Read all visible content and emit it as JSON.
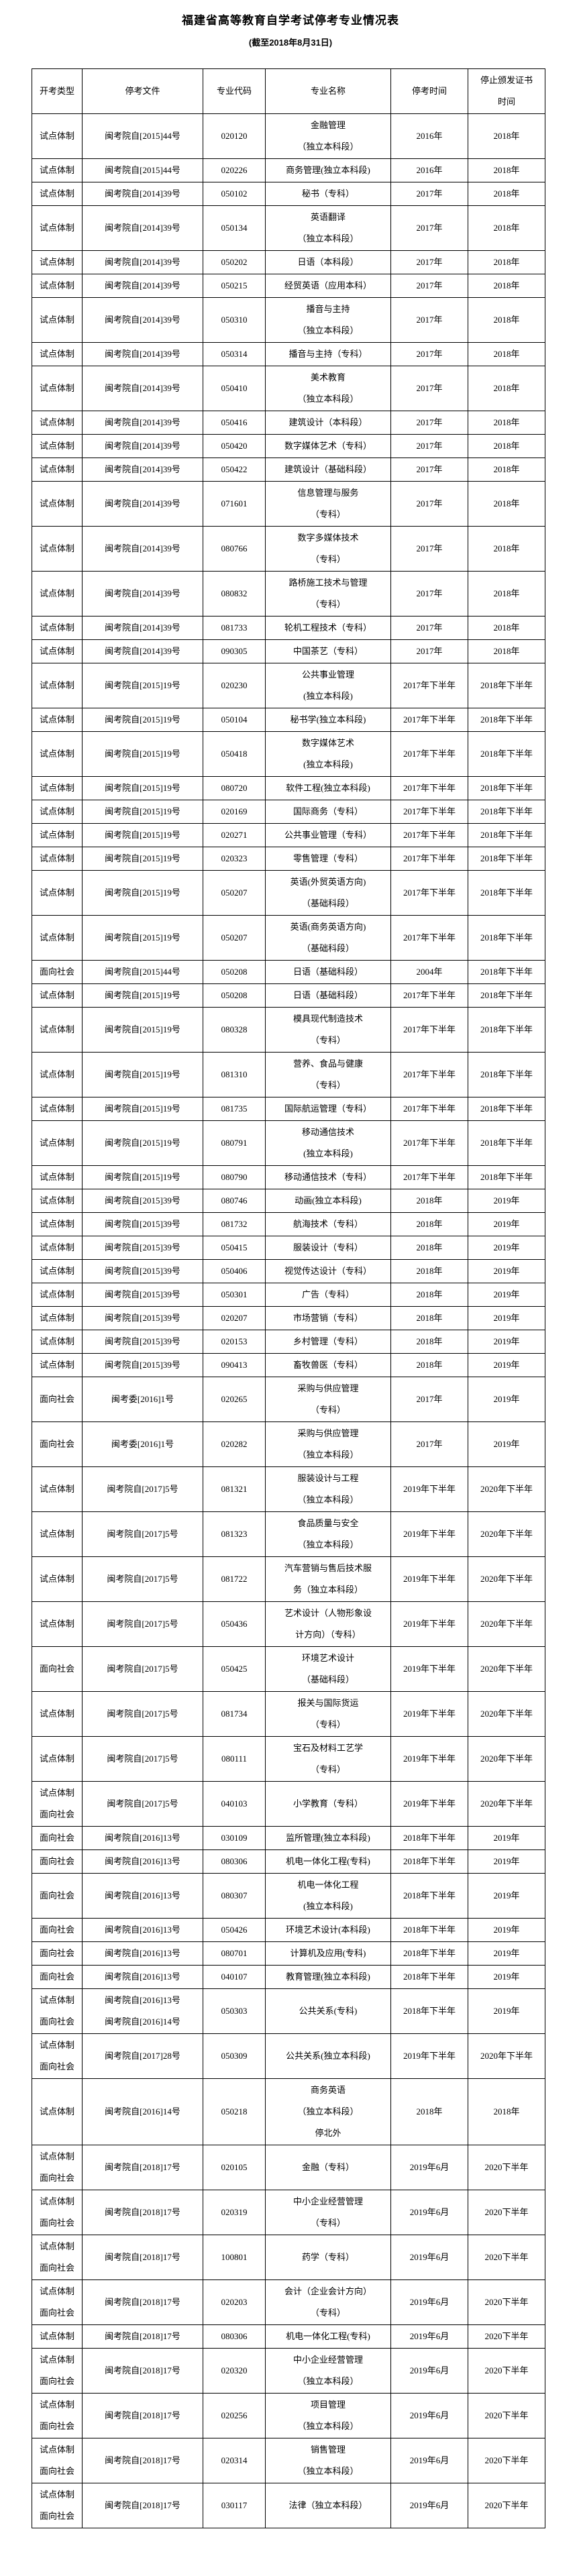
{
  "page": {
    "title": "福建省高等教育自学考试停考专业情况表",
    "subtitle": "(截至2018年8月31日)"
  },
  "table": {
    "headers": [
      "开考类型",
      "停考文件",
      "专业代码",
      "专业名称",
      "停考时间",
      "停止颁发证书\n时间"
    ],
    "rows": [
      [
        "试点体制",
        "闽考院自[2015]44号",
        "020120",
        "金融管理\n（独立本科段）",
        "2016年",
        "2018年"
      ],
      [
        "试点体制",
        "闽考院自[2015]44号",
        "020226",
        "商务管理(独立本科段)",
        "2016年",
        "2018年"
      ],
      [
        "试点体制",
        "闽考院自[2014]39号",
        "050102",
        "秘书（专科）",
        "2017年",
        "2018年"
      ],
      [
        "试点体制",
        "闽考院自[2014]39号",
        "050134",
        "英语翻译\n（独立本科段）",
        "2017年",
        "2018年"
      ],
      [
        "试点体制",
        "闽考院自[2014]39号",
        "050202",
        "日语（本科段）",
        "2017年",
        "2018年"
      ],
      [
        "试点体制",
        "闽考院自[2014]39号",
        "050215",
        "经贸英语（应用本科）",
        "2017年",
        "2018年"
      ],
      [
        "试点体制",
        "闽考院自[2014]39号",
        "050310",
        "播音与主持\n（独立本科段）",
        "2017年",
        "2018年"
      ],
      [
        "试点体制",
        "闽考院自[2014]39号",
        "050314",
        "播音与主持（专科）",
        "2017年",
        "2018年"
      ],
      [
        "试点体制",
        "闽考院自[2014]39号",
        "050410",
        "美术教育\n（独立本科段）",
        "2017年",
        "2018年"
      ],
      [
        "试点体制",
        "闽考院自[2014]39号",
        "050416",
        "建筑设计（本科段）",
        "2017年",
        "2018年"
      ],
      [
        "试点体制",
        "闽考院自[2014]39号",
        "050420",
        "数字媒体艺术（专科）",
        "2017年",
        "2018年"
      ],
      [
        "试点体制",
        "闽考院自[2014]39号",
        "050422",
        "建筑设计（基础科段）",
        "2017年",
        "2018年"
      ],
      [
        "试点体制",
        "闽考院自[2014]39号",
        "071601",
        "信息管理与服务\n（专科）",
        "2017年",
        "2018年"
      ],
      [
        "试点体制",
        "闽考院自[2014]39号",
        "080766",
        "数字多媒体技术\n（专科）",
        "2017年",
        "2018年"
      ],
      [
        "试点体制",
        "闽考院自[2014]39号",
        "080832",
        "路桥施工技术与管理\n（专科）",
        "2017年",
        "2018年"
      ],
      [
        "试点体制",
        "闽考院自[2014]39号",
        "081733",
        "轮机工程技术（专科）",
        "2017年",
        "2018年"
      ],
      [
        "试点体制",
        "闽考院自[2014]39号",
        "090305",
        "中国茶艺（专科）",
        "2017年",
        "2018年"
      ],
      [
        "试点体制",
        "闽考院自[2015]19号",
        "020230",
        "公共事业管理\n(独立本科段)",
        "2017年下半年",
        "2018年下半年"
      ],
      [
        "试点体制",
        "闽考院自[2015]19号",
        "050104",
        "秘书学(独立本科段)",
        "2017年下半年",
        "2018年下半年"
      ],
      [
        "试点体制",
        "闽考院自[2015]19号",
        "050418",
        "数字媒体艺术\n(独立本科段)",
        "2017年下半年",
        "2018年下半年"
      ],
      [
        "试点体制",
        "闽考院自[2015]19号",
        "080720",
        "软件工程(独立本科段)",
        "2017年下半年",
        "2018年下半年"
      ],
      [
        "试点体制",
        "闽考院自[2015]19号",
        "020169",
        "国际商务（专科）",
        "2017年下半年",
        "2018年下半年"
      ],
      [
        "试点体制",
        "闽考院自[2015]19号",
        "020271",
        "公共事业管理（专科）",
        "2017年下半年",
        "2018年下半年"
      ],
      [
        "试点体制",
        "闽考院自[2015]19号",
        "020323",
        "零售管理（专科）",
        "2017年下半年",
        "2018年下半年"
      ],
      [
        "试点体制",
        "闽考院自[2015]19号",
        "050207",
        "英语(外贸英语方向)\n（基础科段）",
        "2017年下半年",
        "2018年下半年"
      ],
      [
        "试点体制",
        "闽考院自[2015]19号",
        "050207",
        "英语(商务英语方向)\n（基础科段）",
        "2017年下半年",
        "2018年下半年"
      ],
      [
        "面向社会",
        "闽考院自[2015]44号",
        "050208",
        "日语（基础科段）",
        "2004年",
        "2018年下半年"
      ],
      [
        "试点体制",
        "闽考院自[2015]19号",
        "050208",
        "日语（基础科段）",
        "2017年下半年",
        "2018年下半年"
      ],
      [
        "试点体制",
        "闽考院自[2015]19号",
        "080328",
        "模具现代制造技术\n（专科）",
        "2017年下半年",
        "2018年下半年"
      ],
      [
        "试点体制",
        "闽考院自[2015]19号",
        "081310",
        "营养、食品与健康\n（专科）",
        "2017年下半年",
        "2018年下半年"
      ],
      [
        "试点体制",
        "闽考院自[2015]19号",
        "081735",
        "国际航运管理（专科）",
        "2017年下半年",
        "2018年下半年"
      ],
      [
        "试点体制",
        "闽考院自[2015]19号",
        "080791",
        "移动通信技术\n(独立本科段)",
        "2017年下半年",
        "2018年下半年"
      ],
      [
        "试点体制",
        "闽考院自[2015]19号",
        "080790",
        "移动通信技术（专科）",
        "2017年下半年",
        "2018年下半年"
      ],
      [
        "试点体制",
        "闽考院自[2015]39号",
        "080746",
        "动画(独立本科段)",
        "2018年",
        "2019年"
      ],
      [
        "试点体制",
        "闽考院自[2015]39号",
        "081732",
        "航海技术（专科）",
        "2018年",
        "2019年"
      ],
      [
        "试点体制",
        "闽考院自[2015]39号",
        "050415",
        "服装设计（专科）",
        "2018年",
        "2019年"
      ],
      [
        "试点体制",
        "闽考院自[2015]39号",
        "050406",
        "视觉传达设计（专科）",
        "2018年",
        "2019年"
      ],
      [
        "试点体制",
        "闽考院自[2015]39号",
        "050301",
        "广告（专科）",
        "2018年",
        "2019年"
      ],
      [
        "试点体制",
        "闽考院自[2015]39号",
        "020207",
        "市场营销（专科）",
        "2018年",
        "2019年"
      ],
      [
        "试点体制",
        "闽考院自[2015]39号",
        "020153",
        "乡村管理（专科）",
        "2018年",
        "2019年"
      ],
      [
        "试点体制",
        "闽考院自[2015]39号",
        "090413",
        "畜牧兽医（专科）",
        "2018年",
        "2019年"
      ],
      [
        "面向社会",
        "闽考委[2016]1号",
        "020265",
        "采购与供应管理\n（专科）",
        "2017年",
        "2019年"
      ],
      [
        "面向社会",
        "闽考委[2016]1号",
        "020282",
        "采购与供应管理\n（独立本科段）",
        "2017年",
        "2019年"
      ],
      [
        "试点体制",
        "闽考院自[2017]5号",
        "081321",
        "服装设计与工程\n（独立本科段）",
        "2019年下半年",
        "2020年下半年"
      ],
      [
        "试点体制",
        "闽考院自[2017]5号",
        "081323",
        "食品质量与安全\n（独立本科段）",
        "2019年下半年",
        "2020年下半年"
      ],
      [
        "试点体制",
        "闽考院自[2017]5号",
        "081722",
        "汽车营销与售后技术服\n务（独立本科段）",
        "2019年下半年",
        "2020年下半年"
      ],
      [
        "试点体制",
        "闽考院自[2017]5号",
        "050436",
        "艺术设计（人物形象设\n计方向）（专科）",
        "2019年下半年",
        "2020年下半年"
      ],
      [
        "面向社会",
        "闽考院自[2017]5号",
        "050425",
        "环境艺术设计\n（基础科段）",
        "2019年下半年",
        "2020年下半年"
      ],
      [
        "试点体制",
        "闽考院自[2017]5号",
        "081734",
        "报关与国际货运\n（专科）",
        "2019年下半年",
        "2020年下半年"
      ],
      [
        "试点体制",
        "闽考院自[2017]5号",
        "080111",
        "宝石及材料工艺学\n（专科）",
        "2019年下半年",
        "2020年下半年"
      ],
      [
        "试点体制\n面向社会",
        "闽考院自[2017]5号",
        "040103",
        "小学教育（专科）",
        "2019年下半年",
        "2020年下半年"
      ],
      [
        "面向社会",
        "闽考院自[2016]13号",
        "030109",
        "监所管理(独立本科段)",
        "2018年下半年",
        "2019年"
      ],
      [
        "面向社会",
        "闽考院自[2016]13号",
        "080306",
        "机电一体化工程(专科)",
        "2018年下半年",
        "2019年"
      ],
      [
        "面向社会",
        "闽考院自[2016]13号",
        "080307",
        "机电一体化工程\n(独立本科段)",
        "2018年下半年",
        "2019年"
      ],
      [
        "面向社会",
        "闽考院自[2016]13号",
        "050426",
        "环境艺术设计(本科段)",
        "2018年下半年",
        "2019年"
      ],
      [
        "面向社会",
        "闽考院自[2016]13号",
        "080701",
        "计算机及应用(专科)",
        "2018年下半年",
        "2019年"
      ],
      [
        "面向社会",
        "闽考院自[2016]13号",
        "040107",
        "教育管理(独立本科段)",
        "2018年下半年",
        "2019年"
      ],
      [
        "试点体制\n面向社会",
        "闽考院自[2016]13号\n闽考院自[2016]14号",
        "050303",
        "公共关系(专科)",
        "2018年下半年",
        "2019年"
      ],
      [
        "试点体制\n面向社会",
        "闽考院自[2017]28号",
        "050309",
        "公共关系(独立本科段)",
        "2019年下半年",
        "2020年下半年"
      ],
      [
        "试点体制",
        "闽考院自[2016]14号",
        "050218",
        "商务英语\n（独立本科段）\n停北外",
        "2018年",
        "2018年"
      ],
      [
        "试点体制\n面向社会",
        "闽考院自[2018]17号",
        "020105",
        "金融（专科）",
        "2019年6月",
        "2020下半年"
      ],
      [
        "试点体制\n面向社会",
        "闽考院自[2018]17号",
        "020319",
        "中小企业经营管理\n（专科）",
        "2019年6月",
        "2020下半年"
      ],
      [
        "试点体制\n面向社会",
        "闽考院自[2018]17号",
        "100801",
        "药学（专科）",
        "2019年6月",
        "2020下半年"
      ],
      [
        "试点体制\n面向社会",
        "闽考院自[2018]17号",
        "020203",
        "会计（企业会计方向）\n（专科）",
        "2019年6月",
        "2020下半年"
      ],
      [
        "试点体制",
        "闽考院自[2018]17号",
        "080306",
        "机电一体化工程(专科)",
        "2019年6月",
        "2020下半年"
      ],
      [
        "试点体制\n面向社会",
        "闽考院自[2018]17号",
        "020320",
        "中小企业经营管理\n（独立本科段）",
        "2019年6月",
        "2020下半年"
      ],
      [
        "试点体制\n面向社会",
        "闽考院自[2018]17号",
        "020256",
        "项目管理\n（独立本科段）",
        "2019年6月",
        "2020下半年"
      ],
      [
        "试点体制\n面向社会",
        "闽考院自[2018]17号",
        "020314",
        "销售管理\n（独立本科段）",
        "2019年6月",
        "2020下半年"
      ],
      [
        "试点体制\n面向社会",
        "闽考院自[2018]17号",
        "030117",
        "法律（独立本科段）",
        "2019年6月",
        "2020下半年"
      ]
    ]
  }
}
